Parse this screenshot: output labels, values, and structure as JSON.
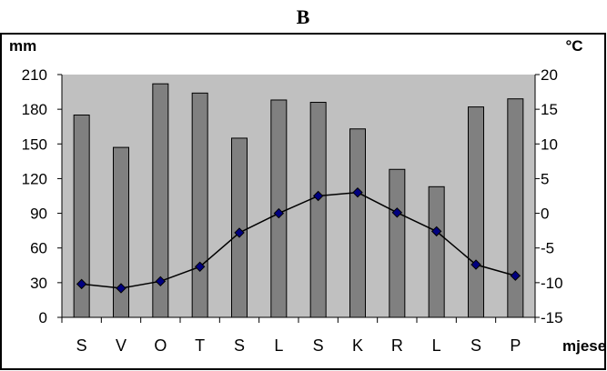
{
  "chart_data": {
    "type": "bar+line",
    "title": "B",
    "categories": [
      "S",
      "V",
      "O",
      "T",
      "S",
      "L",
      "S",
      "K",
      "R",
      "L",
      "S",
      "P"
    ],
    "xlabel": "mjesec",
    "y_left": {
      "label": "mm",
      "ylim": [
        0,
        210
      ],
      "ticks": [
        0,
        30,
        60,
        90,
        120,
        150,
        180,
        210
      ]
    },
    "y_right": {
      "label": "°C",
      "ylim": [
        -15,
        20
      ],
      "ticks": [
        -15,
        -10,
        -5,
        0,
        5,
        10,
        15,
        20
      ]
    },
    "series": [
      {
        "type": "bar",
        "axis": "left",
        "values": [
          175,
          147,
          202,
          194,
          155,
          188,
          186,
          163,
          128,
          113,
          182,
          189
        ]
      },
      {
        "type": "line",
        "axis": "right",
        "values": [
          -10.2,
          -10.8,
          -9.8,
          -7.7,
          -2.8,
          0.0,
          2.5,
          3.0,
          0.1,
          -2.6,
          -7.4,
          -9.0
        ]
      }
    ],
    "grid": false,
    "plot_background": "#c0c0c0",
    "bar_color": "#808080",
    "marker_color": "#000080",
    "line_color": "#000000"
  }
}
